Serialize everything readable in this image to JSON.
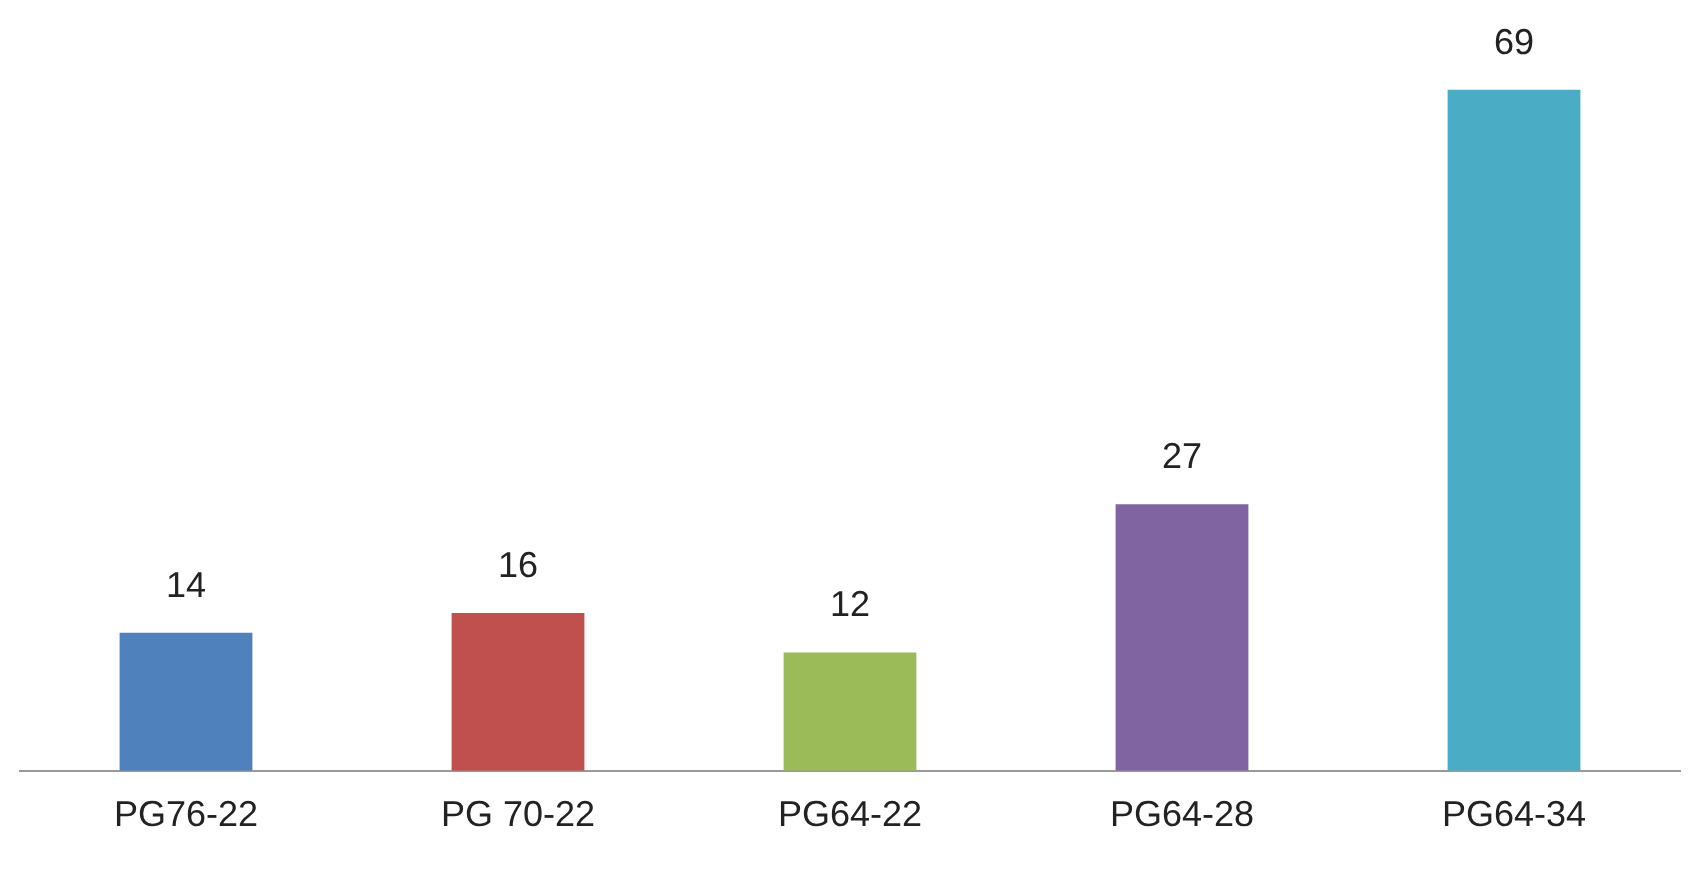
{
  "chart_data": {
    "type": "bar",
    "categories": [
      "PG76-22",
      "PG 70-22",
      "PG64-22",
      "PG64-28",
      "PG64-34"
    ],
    "values": [
      14,
      16,
      12,
      27,
      69
    ],
    "colors": [
      "#4f81bd",
      "#c0504d",
      "#9bbb59",
      "#8064a2",
      "#4bacc6"
    ],
    "data_labels": true,
    "grid": false,
    "legend": false,
    "tick_labels": "x"
  }
}
